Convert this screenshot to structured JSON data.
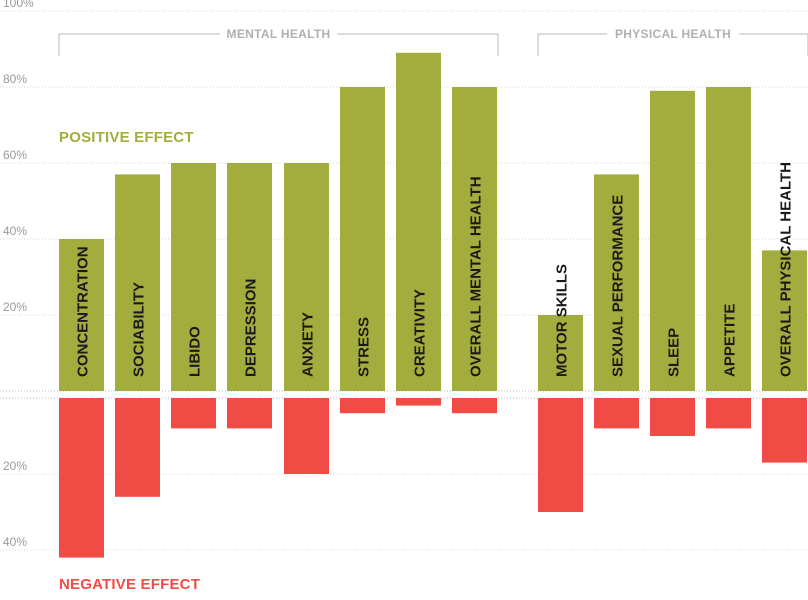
{
  "chart_data": {
    "type": "bar",
    "categories": [
      "CONCENTRATION",
      "SOCIABILITY",
      "LIBIDO",
      "DEPRESSION",
      "ANXIETY",
      "STRESS",
      "CREATIVITY",
      "OVERALL MENTAL HEALTH",
      "MOTOR SKILLS",
      "SEXUAL PERFORMANCE",
      "SLEEP",
      "APPETITE",
      "OVERALL PHYSICAL  HEALTH"
    ],
    "groups": [
      {
        "label": "MENTAL HEALTH",
        "categories": [
          "CONCENTRATION",
          "SOCIABILITY",
          "LIBIDO",
          "DEPRESSION",
          "ANXIETY",
          "STRESS",
          "CREATIVITY",
          "OVERALL MENTAL HEALTH"
        ]
      },
      {
        "label": "PHYSICAL HEALTH",
        "categories": [
          "MOTOR SKILLS",
          "SEXUAL PERFORMANCE",
          "SLEEP",
          "APPETITE",
          "OVERALL PHYSICAL  HEALTH"
        ]
      }
    ],
    "series": [
      {
        "name": "POSITIVE EFFECT",
        "color": "#a3ad3d",
        "values": [
          40,
          57,
          60,
          60,
          60,
          80,
          89,
          80,
          20,
          57,
          79,
          80,
          37
        ]
      },
      {
        "name": "NEGATIVE EFFECT",
        "color": "#f04c45",
        "values": [
          42,
          26,
          8,
          8,
          20,
          4,
          2,
          4,
          30,
          8,
          10,
          8,
          17
        ]
      }
    ],
    "positive_ticks": [
      "20%",
      "40%",
      "60%",
      "80%",
      "100%"
    ],
    "negative_ticks": [
      "20%",
      "40%"
    ],
    "positive_range": [
      0,
      100
    ],
    "negative_range": [
      0,
      40
    ],
    "grid": true,
    "axis_color": "#b0b0b0",
    "text_color": "#1a1a1a"
  }
}
